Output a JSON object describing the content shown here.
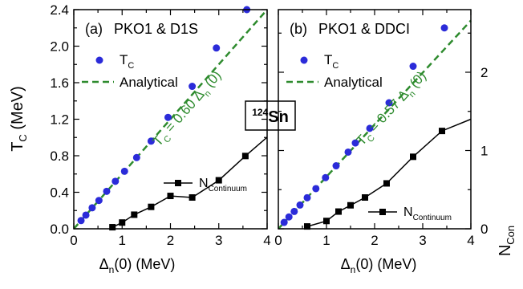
{
  "figure": {
    "y_title_main": "T",
    "y_title_sub": "C",
    "y_title_unit": " (MeV)",
    "y_title_right_main": "N",
    "y_title_right_sub": "Con",
    "x_title_main": "Δ",
    "x_title_sub": "n",
    "x_title_unit": "(0) (MeV)",
    "nucleus_sup": "124",
    "nucleus": "Sn"
  },
  "colors": {
    "tc_points": "#2b2bd9",
    "analytical_line": "#2e8b2e",
    "ncontinuum": "#000000",
    "axes": "#000000"
  },
  "chart_data": [
    {
      "type": "scatter",
      "panel": "(a)",
      "title": "PKO1 & D1S",
      "xlabel": "Δn(0) (MeV)",
      "ylabel": "TC (MeV)",
      "xlim": [
        0,
        4
      ],
      "ylim": [
        0,
        2.4
      ],
      "ylim_right": [
        0,
        2.8
      ],
      "x_ticks": [
        "0",
        "1",
        "2",
        "3",
        "4"
      ],
      "y_ticks": [
        "0.0",
        "0.4",
        "0.8",
        "1.2",
        "1.6",
        "2.0",
        "2.4"
      ],
      "legend": {
        "tc": "T",
        "tc_sub": "C",
        "line": "Analytical",
        "position": "top-left"
      },
      "slope_label": {
        "prefix": "T",
        "sub": "C",
        "mid": " = 0.60 Δ",
        "sub2": "n",
        "suffix": " (0)",
        "slope": 0.6
      },
      "ncon_legend": {
        "main": "N",
        "sub": "Continuum"
      },
      "series": [
        {
          "name": "TC",
          "x": [
            0.15,
            0.25,
            0.38,
            0.52,
            0.68,
            0.86,
            1.05,
            1.3,
            1.6,
            1.95,
            2.45,
            2.95,
            3.58
          ],
          "y": [
            0.09,
            0.15,
            0.23,
            0.31,
            0.41,
            0.52,
            0.63,
            0.78,
            0.96,
            1.22,
            1.56,
            1.98,
            2.4
          ]
        },
        {
          "name": "NContinuum",
          "axis": "right",
          "x": [
            0.8,
            1.0,
            1.25,
            1.6,
            2.0,
            2.45,
            3.0,
            3.55,
            4.0
          ],
          "y": [
            0.02,
            0.08,
            0.18,
            0.28,
            0.42,
            0.4,
            0.62,
            0.93,
            1.17
          ]
        }
      ]
    },
    {
      "type": "scatter",
      "panel": "(b)",
      "title": "PKO1 & DDCI",
      "xlabel": "Δn(0) (MeV)",
      "ylabel": "NCon",
      "xlim": [
        0,
        4
      ],
      "ylim": [
        0,
        2.4
      ],
      "ylim_right": [
        0,
        2.8
      ],
      "x_ticks": [
        "0",
        "1",
        "2",
        "3",
        "4"
      ],
      "y_ticks_right": [
        "0",
        "1",
        "2"
      ],
      "legend": {
        "tc": "T",
        "tc_sub": "C",
        "line": "Analytical",
        "position": "top-left"
      },
      "slope_label": {
        "prefix": "T",
        "sub": "C",
        "mid": " = 0.57 Δ",
        "sub2": "n",
        "suffix": " (0)",
        "slope": 0.57
      },
      "ncon_legend": {
        "main": "N",
        "sub": "Continuum"
      },
      "series": [
        {
          "name": "TC",
          "x": [
            0.12,
            0.22,
            0.33,
            0.45,
            0.6,
            0.78,
            0.98,
            1.2,
            1.45,
            1.6,
            1.9,
            2.3,
            2.8,
            3.45
          ],
          "y": [
            0.07,
            0.13,
            0.19,
            0.26,
            0.34,
            0.44,
            0.56,
            0.69,
            0.84,
            0.94,
            1.1,
            1.38,
            1.78,
            2.2
          ]
        },
        {
          "name": "NContinuum",
          "axis": "right",
          "x": [
            0.6,
            1.0,
            1.25,
            1.5,
            1.8,
            2.25,
            2.8,
            3.4,
            4.0
          ],
          "y": [
            0.03,
            0.1,
            0.22,
            0.3,
            0.4,
            0.58,
            0.92,
            1.25,
            1.4
          ]
        }
      ]
    }
  ]
}
